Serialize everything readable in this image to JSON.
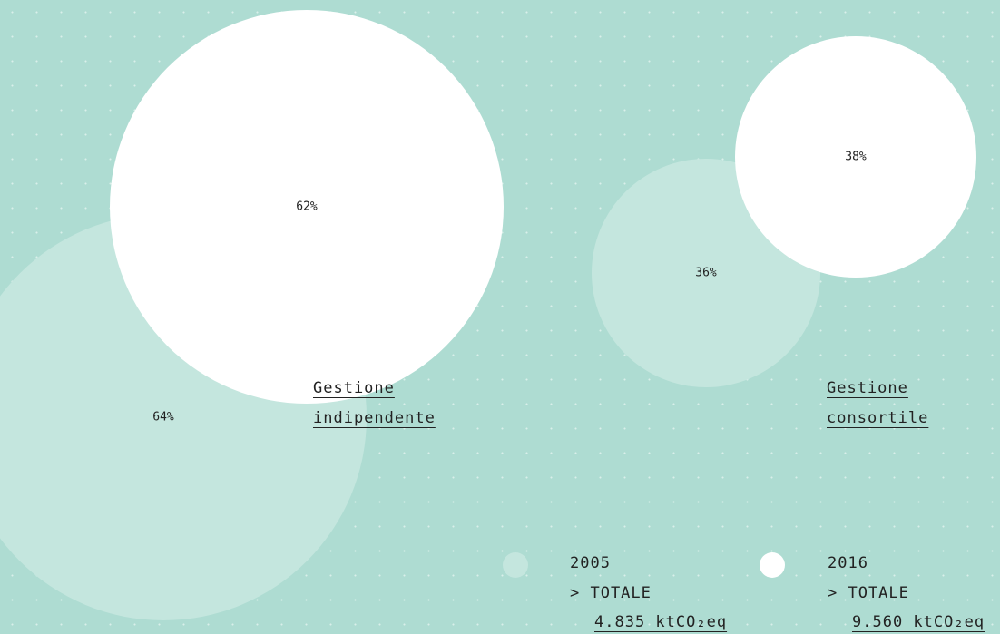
{
  "chart_data": {
    "type": "bubble",
    "categories": [
      "Gestione indipendente",
      "Gestione consortile"
    ],
    "total_label": "> TOTALE",
    "series": [
      {
        "name": "2005",
        "color": "#c4e6de",
        "values": [
          64,
          36
        ],
        "value_labels": [
          "64%",
          "36%"
        ],
        "total": "4.835 ktCO₂eq"
      },
      {
        "name": "2016",
        "color": "#ffffff",
        "values": [
          62,
          38
        ],
        "value_labels": [
          "62%",
          "38%"
        ],
        "total": "9.560 ktCO₂eq"
      }
    ]
  }
}
